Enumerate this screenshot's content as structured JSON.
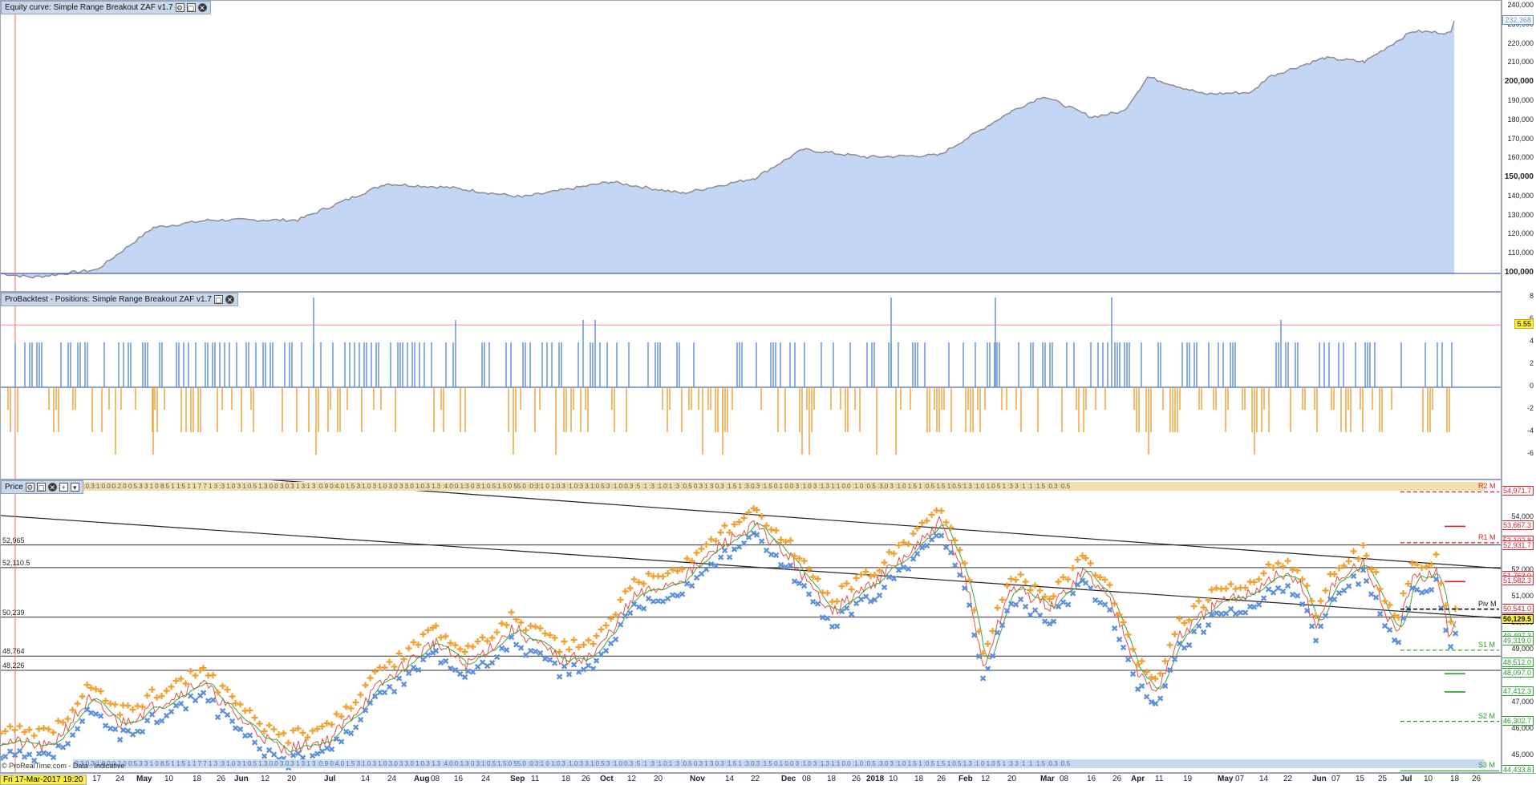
{
  "equity": {
    "title": "Equity curve: Simple Range Breakout ZAF v1.7",
    "ticks": [
      "240,000",
      "230,000",
      "220,000",
      "210,000",
      "200,000",
      "190,000",
      "180,000",
      "170,000",
      "160,000",
      "150,000",
      "140,000",
      "130,000",
      "120,000",
      "110,000",
      "100,000"
    ],
    "current": "232,368",
    "colors": {
      "fill": "#c3d6f4",
      "line": "#5b8fd8",
      "accent": "#f0962a"
    }
  },
  "positions": {
    "title": "ProBacktest - Positions: Simple Range Breakout ZAF v1.7",
    "ticks": [
      "8",
      "6",
      "4",
      "2",
      "0",
      "-2",
      "-4",
      "-6"
    ],
    "current": "5.55",
    "colors": {
      "long": "#5b8fd8",
      "short": "#f0a030"
    }
  },
  "price": {
    "title": "Price",
    "ticks": [
      "54,000",
      "53,000",
      "52,000",
      "51,000",
      "50,000",
      "49,000",
      "48,000",
      "47,000",
      "46,000",
      "45,000"
    ],
    "left_levels": [
      "52,965",
      "52,110.5",
      "50,239",
      "48,764",
      "48,226"
    ],
    "pivots": [
      {
        "label": "R2 M",
        "color": "#d6202a"
      },
      {
        "label": "R1 M",
        "color": "#d6202a"
      },
      {
        "label": "Piv M",
        "color": "#111111"
      },
      {
        "label": "S1 M",
        "color": "#2a9a2a"
      },
      {
        "label": "S2 M",
        "color": "#2a9a2a"
      },
      {
        "label": "S3 M",
        "color": "#2a9a2a"
      }
    ],
    "boxes": [
      {
        "text": "54,971.7",
        "color": "#d6202a"
      },
      {
        "text": "53,667.3",
        "color": "#d6202a"
      },
      {
        "text": "53,102.8",
        "color": "#d6202a"
      },
      {
        "text": "52,931.7",
        "color": "#d6202a"
      },
      {
        "text": "51,763.0",
        "color": "#d6202a"
      },
      {
        "text": "51,582.3",
        "color": "#d6202a"
      },
      {
        "text": "50,541.0",
        "color": "#d6202a"
      },
      {
        "text": "50,129.5",
        "color": "#111111"
      },
      {
        "text": "49,497.3",
        "color": "#2a9a2a"
      },
      {
        "text": "49,319.0",
        "color": "#2a9a2a"
      },
      {
        "text": "48,512.0",
        "color": "#2a9a2a"
      },
      {
        "text": "48,097.0",
        "color": "#2a9a2a"
      },
      {
        "text": "47,412.3",
        "color": "#2a9a2a"
      },
      {
        "text": "46,302.7",
        "color": "#2a9a2a"
      },
      {
        "text": "44,433.8",
        "color": "#2a9a2a"
      }
    ],
    "strip_top": ":0.3:0.3:1:0.0:0.2.0 0:5.3 3 1 0 8.5 1 1:5 1 1 7 7 1 3 :3 1.0 3 1:0.5 1.3.0.0 3.0.3 1 3:1 3 :0.9 0:4.0 1.5 3:1.0 3 1.0 3.0 3 3.0 1:0.3 1.3 :4.0:0.1:3 0 3:1:0.5:1.5:0 55.0 :0:3:1 0 1:0.3 :1.0:3 3.1:0.5:3 :1.0:0.3 :5 :1 :3 :1.0:1 :3 :0.5 0.3 1 3 0.3 :1.5 1 :3.0.3 :1.5 0.1 0.0 3 :1.0 3 :1.3 1:1 0.0 :1.0 :0.5 :3.0 3 :1.0 1.5 1 :0.5 1.5 1:0.5:1.3 :1.0 1.0 5 1 :3 3 :1 :1 :1.5 :0.3 :0.5"
  },
  "date_axis": {
    "stamp": "Fri 17-Mar-2017 19:20",
    "labels": [
      {
        "t": "17",
        "b": false
      },
      {
        "t": "24",
        "b": false
      },
      {
        "t": "May",
        "b": true
      },
      {
        "t": "10",
        "b": false
      },
      {
        "t": "18",
        "b": false
      },
      {
        "t": "26",
        "b": false
      },
      {
        "t": "Jun",
        "b": true
      },
      {
        "t": "12",
        "b": false
      },
      {
        "t": "20",
        "b": false
      },
      {
        "t": "Jul",
        "b": true
      },
      {
        "t": "14",
        "b": false
      },
      {
        "t": "24",
        "b": false
      },
      {
        "t": "Aug",
        "b": true
      },
      {
        "t": "08",
        "b": false
      },
      {
        "t": "16",
        "b": false
      },
      {
        "t": "24",
        "b": false
      },
      {
        "t": "Sep",
        "b": true
      },
      {
        "t": "11",
        "b": false
      },
      {
        "t": "18",
        "b": false
      },
      {
        "t": "26",
        "b": false
      },
      {
        "t": "Oct",
        "b": true
      },
      {
        "t": "12",
        "b": false
      },
      {
        "t": "20",
        "b": false
      },
      {
        "t": "Nov",
        "b": true
      },
      {
        "t": "14",
        "b": false
      },
      {
        "t": "22",
        "b": false
      },
      {
        "t": "Dec",
        "b": true
      },
      {
        "t": "08",
        "b": false
      },
      {
        "t": "18",
        "b": false
      },
      {
        "t": "26",
        "b": false
      },
      {
        "t": "2018",
        "b": true
      },
      {
        "t": "10",
        "b": false
      },
      {
        "t": "18",
        "b": false
      },
      {
        "t": "26",
        "b": false
      },
      {
        "t": "Feb",
        "b": true
      },
      {
        "t": "12",
        "b": false
      },
      {
        "t": "20",
        "b": false
      },
      {
        "t": "Mar",
        "b": true
      },
      {
        "t": "08",
        "b": false
      },
      {
        "t": "16",
        "b": false
      },
      {
        "t": "26",
        "b": false
      },
      {
        "t": "Apr",
        "b": true
      },
      {
        "t": "11",
        "b": false
      },
      {
        "t": "19",
        "b": false
      },
      {
        "t": "May",
        "b": true
      },
      {
        "t": "07",
        "b": false
      },
      {
        "t": "14",
        "b": false
      },
      {
        "t": "22",
        "b": false
      },
      {
        "t": "Jun",
        "b": true
      },
      {
        "t": "07",
        "b": false
      },
      {
        "t": "15",
        "b": false
      },
      {
        "t": "25",
        "b": false
      },
      {
        "t": "Jul",
        "b": true
      },
      {
        "t": "10",
        "b": false
      },
      {
        "t": "18",
        "b": false
      },
      {
        "t": "26",
        "b": false
      }
    ],
    "copyright": "© ProRealTime.com - Data : Indicative"
  }
}
